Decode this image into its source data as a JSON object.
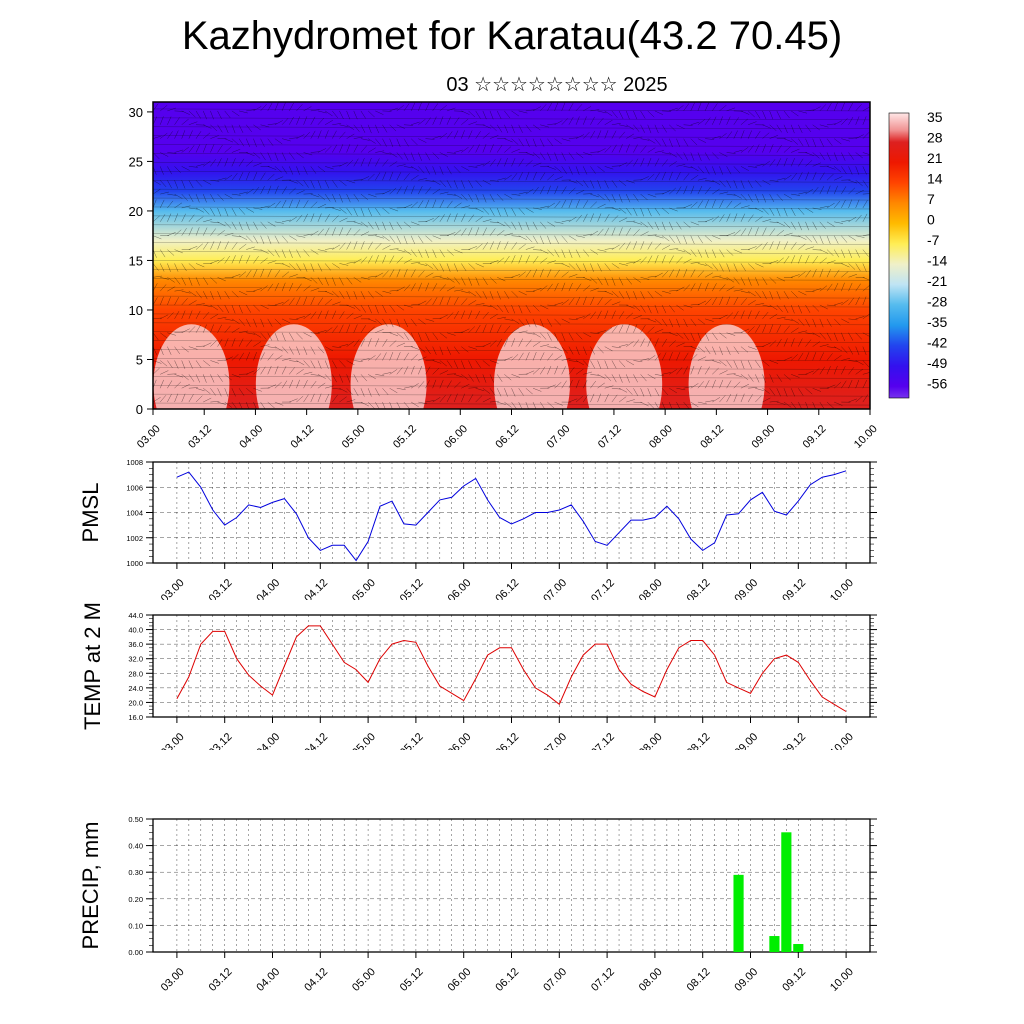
{
  "title": "Kazhydromet for Karatau(43.2 70.45)",
  "subtitle": "03 ☆☆☆☆☆☆☆☆ 2025",
  "time_labels": [
    "03.00",
    "03.12",
    "04.00",
    "04.12",
    "05.00",
    "05.12",
    "06.00",
    "06.12",
    "07.00",
    "07.12",
    "08.00",
    "08.12",
    "09.00",
    "09.12",
    "10.00"
  ],
  "colors": {
    "pmsl_line": "#0000dd",
    "temp_line": "#dd0000",
    "precip_bar": "#00ee00"
  },
  "chart_data": [
    {
      "type": "heatmap",
      "name": "vertical-section",
      "title": "",
      "y_ticks": [
        0,
        5,
        10,
        15,
        20,
        25,
        30
      ],
      "ylim": [
        0,
        31
      ],
      "xlim": [
        0,
        14
      ],
      "colorbar": {
        "labels": [
          "35",
          "28",
          "21",
          "14",
          "7",
          "0",
          "-7",
          "-14",
          "-21",
          "-28",
          "-35",
          "-42",
          "-49",
          "-56"
        ],
        "stops": [
          {
            "value": 38,
            "color": "#ffe8e8"
          },
          {
            "value": 32,
            "color": "#f09090"
          },
          {
            "value": 28,
            "color": "#dd2020"
          },
          {
            "value": 21,
            "color": "#ee1800"
          },
          {
            "value": 14,
            "color": "#ff4400"
          },
          {
            "value": 7,
            "color": "#ff8800"
          },
          {
            "value": 0,
            "color": "#ffbb00"
          },
          {
            "value": -7,
            "color": "#ffee55"
          },
          {
            "value": -14,
            "color": "#f0f0c8"
          },
          {
            "value": -21,
            "color": "#bfe4f4"
          },
          {
            "value": -28,
            "color": "#55bbee"
          },
          {
            "value": -35,
            "color": "#2299ee"
          },
          {
            "value": -42,
            "color": "#2244ee"
          },
          {
            "value": -49,
            "color": "#3311ee"
          },
          {
            "value": -56,
            "color": "#5500ee"
          },
          {
            "value": -60,
            "color": "#7733ee"
          }
        ]
      },
      "profile": [
        {
          "level": 0,
          "value": 26
        },
        {
          "level": 5,
          "value": 22
        },
        {
          "level": 10,
          "value": 14
        },
        {
          "level": 13,
          "value": 5
        },
        {
          "level": 15,
          "value": -7
        },
        {
          "level": 17,
          "value": -16
        },
        {
          "level": 20,
          "value": -28
        },
        {
          "level": 22,
          "value": -40
        },
        {
          "level": 24,
          "value": -52
        },
        {
          "level": 26,
          "value": -57
        },
        {
          "level": 31,
          "value": -58
        }
      ]
    },
    {
      "type": "line",
      "name": "pmsl",
      "ylabel": "PMSL",
      "ylim": [
        1000,
        1008
      ],
      "y_ticks": [
        "1000",
        "1002",
        "1004",
        "1006",
        "1008"
      ],
      "xlim": [
        -0.5,
        14.5
      ],
      "series": [
        {
          "x": [
            0.0,
            0.25,
            0.5,
            0.75,
            1.0,
            1.25,
            1.5,
            1.75,
            2.0,
            2.25,
            2.5,
            2.75,
            3.0,
            3.25,
            3.5,
            3.75,
            4.0,
            4.25,
            4.5,
            4.75,
            5.0,
            5.25,
            5.5,
            5.75,
            6.0,
            6.25,
            6.5,
            6.75,
            7.0,
            7.25,
            7.5,
            7.75,
            8.0,
            8.25,
            8.5,
            8.75,
            9.0,
            9.25,
            9.5,
            9.75,
            10.0,
            10.25,
            10.5,
            10.75,
            11.0,
            11.25,
            11.5,
            11.75,
            12.0,
            12.25,
            12.5,
            12.75,
            13.0,
            13.25,
            13.5,
            13.75,
            14.0
          ],
          "y": [
            1006.8,
            1007.2,
            1006.0,
            1004.2,
            1003.0,
            1003.6,
            1004.6,
            1004.4,
            1004.8,
            1005.1,
            1003.9,
            1002.0,
            1001.0,
            1001.4,
            1001.4,
            1000.2,
            1001.7,
            1004.5,
            1004.9,
            1003.1,
            1003.0,
            1004.0,
            1005.0,
            1005.2,
            1006.1,
            1006.7,
            1005.0,
            1003.6,
            1003.1,
            1003.5,
            1004.0,
            1004.0,
            1004.2,
            1004.6,
            1003.3,
            1001.7,
            1001.4,
            1002.4,
            1003.4,
            1003.4,
            1003.6,
            1004.5,
            1003.5,
            1001.9,
            1001.0,
            1001.6,
            1003.8,
            1003.9,
            1005.0,
            1005.6,
            1004.1,
            1003.8,
            1004.9,
            1006.2,
            1006.8,
            1007.0,
            1007.3
          ]
        }
      ]
    },
    {
      "type": "line",
      "name": "temp-2m",
      "ylabel": "TEMP at 2 M",
      "ylim": [
        16,
        44
      ],
      "y_ticks": [
        "16.0",
        "20.0",
        "24.0",
        "28.0",
        "32.0",
        "36.0",
        "40.0",
        "44.0"
      ],
      "xlim": [
        -0.5,
        14.5
      ],
      "series": [
        {
          "x": [
            0.0,
            0.25,
            0.5,
            0.75,
            1.0,
            1.25,
            1.5,
            1.75,
            2.0,
            2.25,
            2.5,
            2.75,
            3.0,
            3.25,
            3.5,
            3.75,
            4.0,
            4.25,
            4.5,
            4.75,
            5.0,
            5.25,
            5.5,
            5.75,
            6.0,
            6.25,
            6.5,
            6.75,
            7.0,
            7.25,
            7.5,
            7.75,
            8.0,
            8.25,
            8.5,
            8.75,
            9.0,
            9.25,
            9.5,
            9.75,
            10.0,
            10.25,
            10.5,
            10.75,
            11.0,
            11.25,
            11.5,
            11.75,
            12.0,
            12.25,
            12.5,
            12.75,
            13.0,
            13.25,
            13.5,
            13.75,
            14.0
          ],
          "y": [
            21.0,
            27.0,
            36.0,
            39.5,
            39.5,
            32.0,
            27.5,
            24.5,
            22.0,
            30.0,
            38.0,
            41.0,
            41.0,
            36.0,
            31.0,
            29.0,
            25.5,
            32.0,
            36.0,
            37.0,
            36.5,
            30.0,
            24.5,
            22.5,
            20.5,
            26.5,
            33.0,
            35.0,
            35.0,
            29.0,
            24.0,
            22.0,
            19.5,
            27.0,
            33.0,
            36.0,
            36.0,
            29.0,
            25.0,
            23.0,
            21.5,
            29.0,
            35.0,
            37.0,
            37.0,
            33.0,
            25.5,
            24.0,
            22.5,
            28.0,
            32.0,
            33.0,
            31.0,
            26.0,
            21.5,
            19.5,
            17.5
          ]
        }
      ]
    },
    {
      "type": "bar",
      "name": "precip",
      "ylabel": "PRECIP, mm",
      "ylim": [
        0,
        0.5
      ],
      "y_ticks": [
        "0.00",
        "0.10",
        "0.20",
        "0.30",
        "0.40",
        "0.50"
      ],
      "xlim": [
        -0.5,
        14.5
      ],
      "series": [
        {
          "x": [
            11.75,
            12.5,
            12.75,
            13.0
          ],
          "y": [
            0.29,
            0.06,
            0.45,
            0.03
          ]
        }
      ]
    }
  ]
}
